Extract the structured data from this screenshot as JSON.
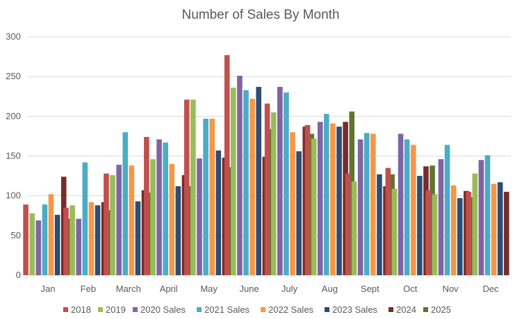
{
  "chart_data": {
    "type": "bar",
    "title": "Number of Sales By Month",
    "xlabel": "",
    "ylabel": "",
    "ylim": [
      0,
      300
    ],
    "yticks": [
      0,
      50,
      100,
      150,
      200,
      250,
      300
    ],
    "grid": true,
    "legend_position": "bottom",
    "categories": [
      "Jan",
      "Feb",
      "March",
      "April",
      "May",
      "June",
      "July",
      "Aug",
      "Sept",
      "Oct",
      "Nov",
      "Dec"
    ],
    "series": [
      {
        "name": "2018",
        "color": "#c0504d",
        "values": [
          89,
          85,
          128,
          174,
          221,
          277,
          216,
          189,
          128,
          135,
          107,
          105
        ]
      },
      {
        "name": "2019",
        "color": "#9bbb59",
        "values": [
          78,
          88,
          126,
          146,
          221,
          236,
          205,
          172,
          118,
          109,
          102,
          128
        ]
      },
      {
        "name": "2020 Sales",
        "color": "#8064a2",
        "values": [
          69,
          71,
          139,
          171,
          147,
          251,
          237,
          193,
          171,
          178,
          146,
          145
        ]
      },
      {
        "name": "2021 Sales",
        "color": "#4bacc6",
        "values": [
          89,
          142,
          180,
          167,
          197,
          233,
          230,
          203,
          179,
          171,
          164,
          151
        ]
      },
      {
        "name": "2022 Sales",
        "color": "#f79646",
        "values": [
          102,
          92,
          138,
          140,
          197,
          222,
          180,
          191,
          178,
          164,
          113,
          115
        ]
      },
      {
        "name": "2023 Sales",
        "color": "#2c4d75",
        "values": [
          76,
          88,
          93,
          112,
          157,
          237,
          156,
          187,
          127,
          125,
          97,
          117
        ]
      },
      {
        "name": "2024",
        "color": "#772c2a",
        "values": [
          124,
          92,
          107,
          126,
          148,
          149,
          187,
          193,
          112,
          137,
          106,
          105
        ]
      },
      {
        "name": "2025",
        "color": "#5f7530",
        "values": [
          71,
          82,
          104,
          112,
          136,
          184,
          178,
          206,
          127,
          138,
          98,
          null
        ]
      }
    ]
  }
}
